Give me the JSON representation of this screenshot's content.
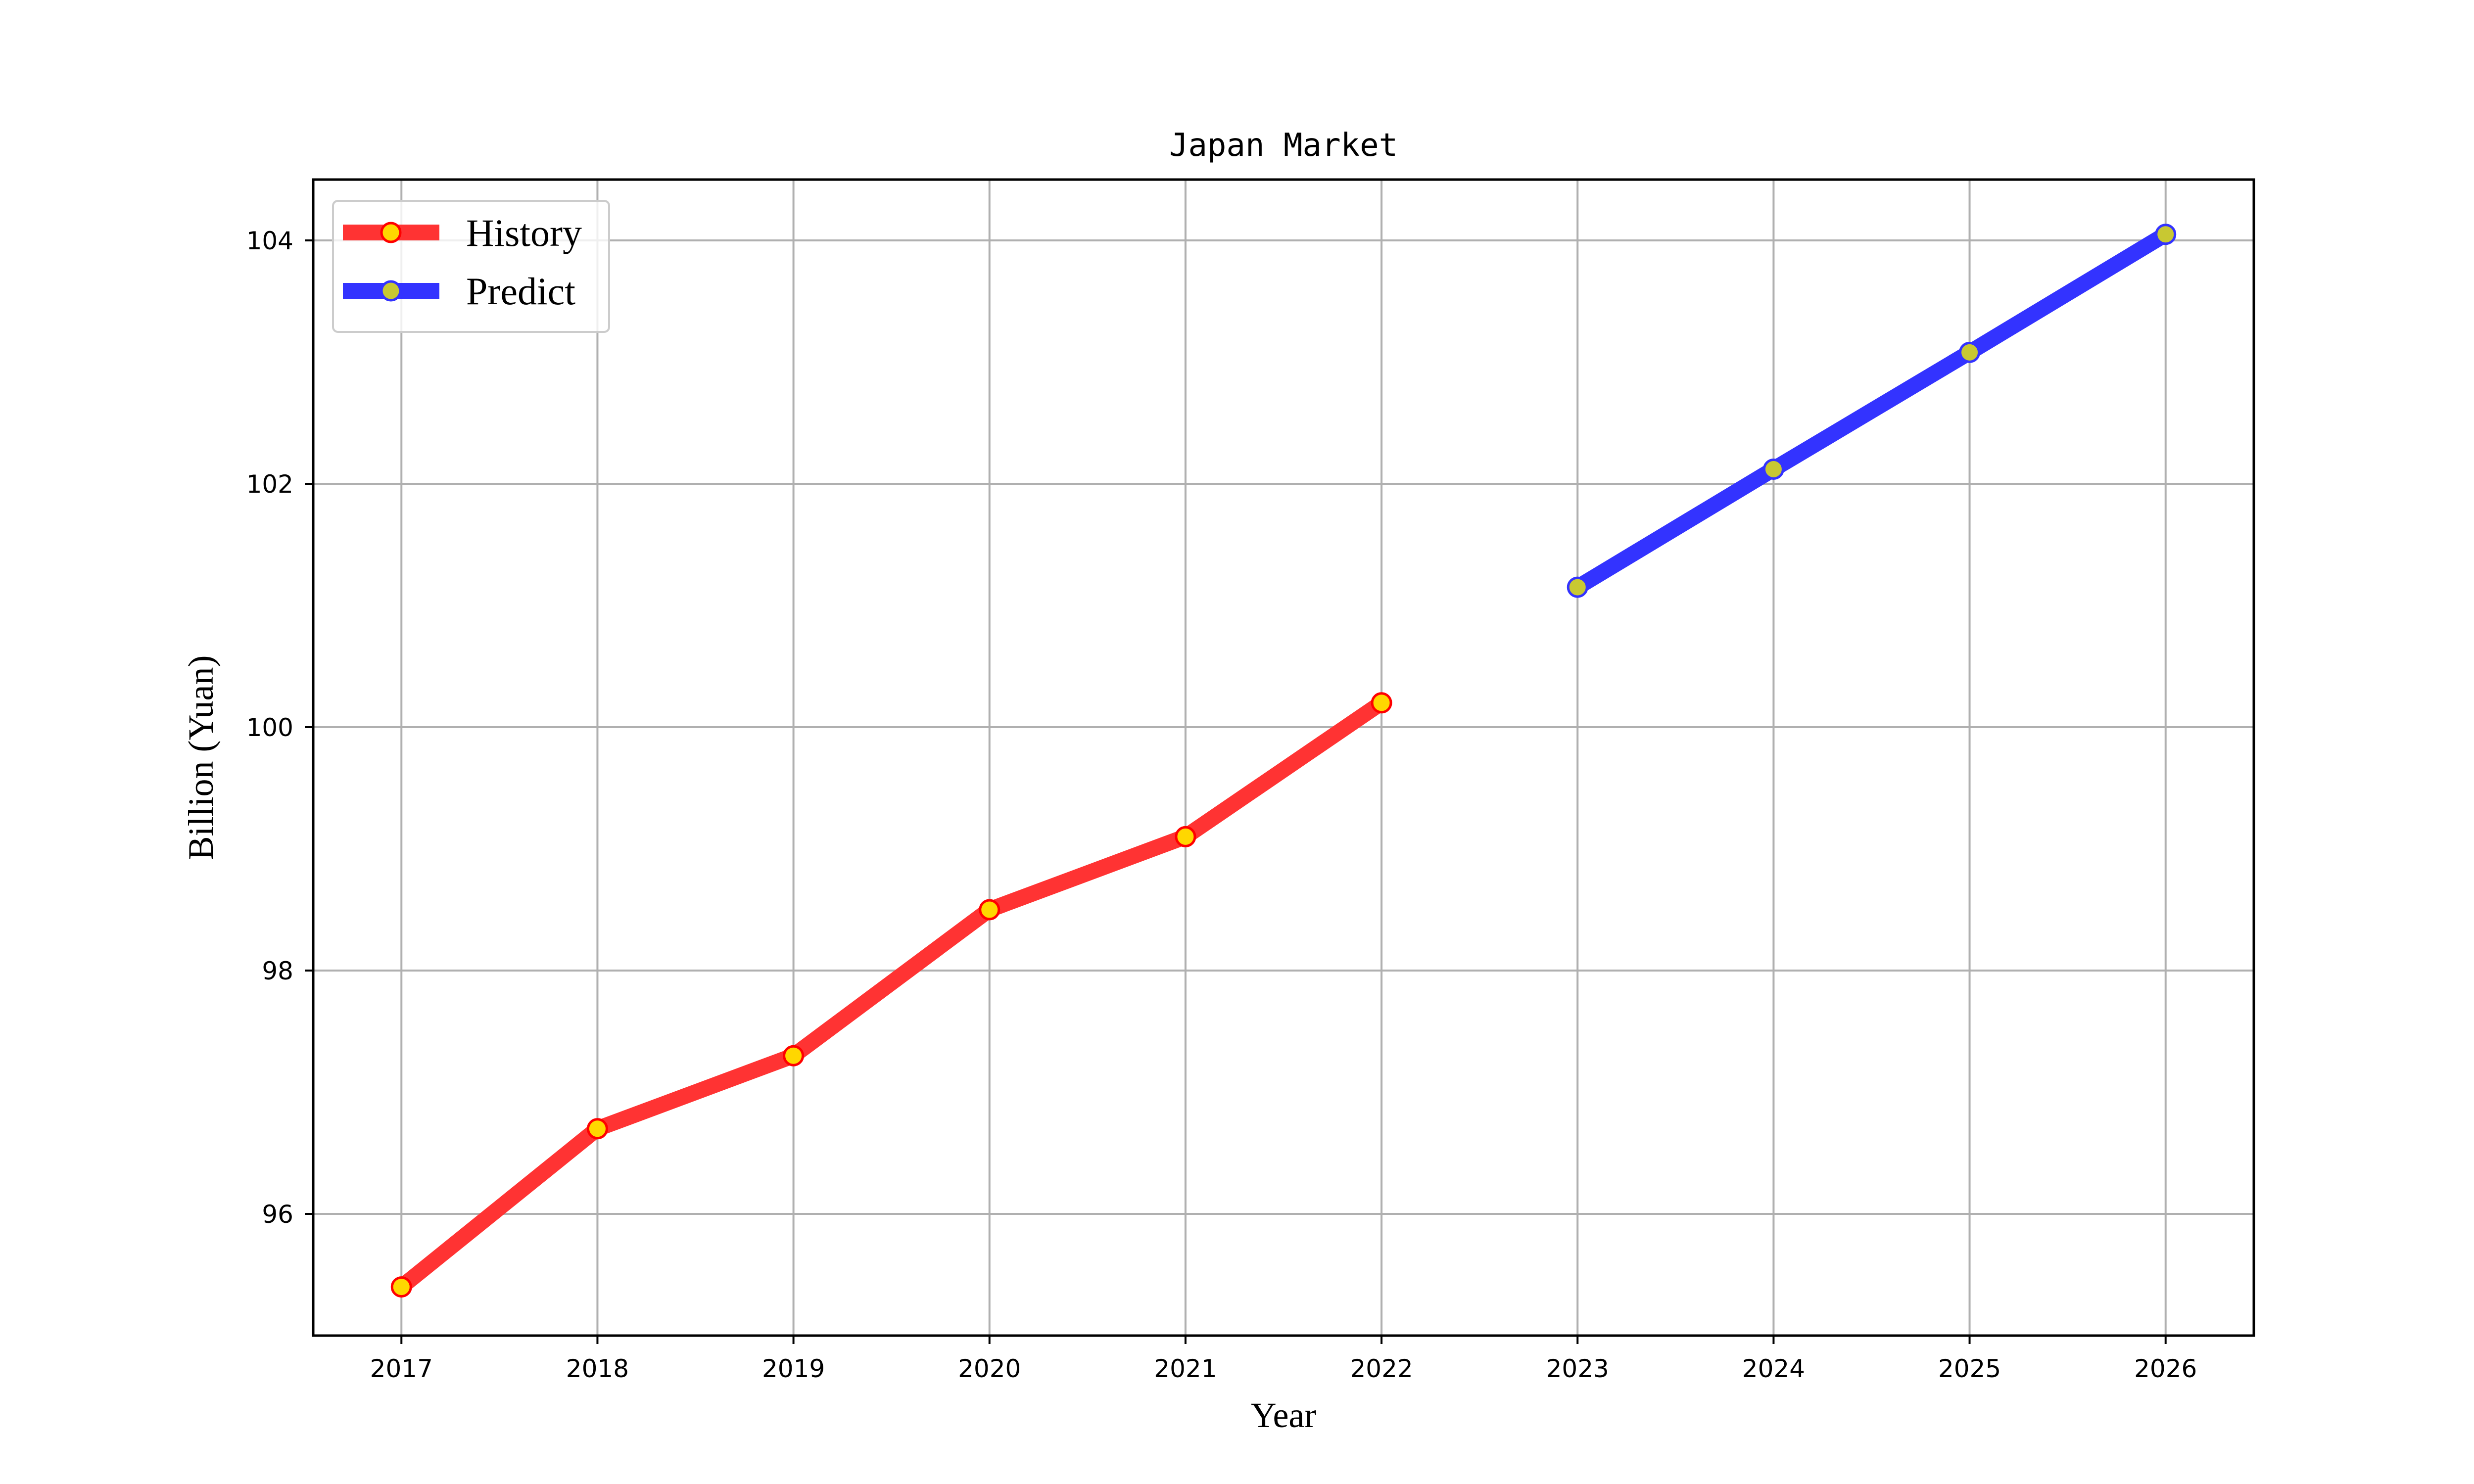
{
  "chart_data": {
    "type": "line",
    "title": "Japan Market",
    "xlabel": "Year",
    "ylabel": "Billion (Yuan)",
    "x": [
      2017,
      2018,
      2019,
      2020,
      2021,
      2022,
      2023,
      2024,
      2025,
      2026
    ],
    "xlim": [
      2016.55,
      2026.45
    ],
    "ylim": [
      95.0,
      104.5
    ],
    "yticks": [
      96,
      98,
      100,
      102,
      104
    ],
    "grid": true,
    "legend_position": "top-left",
    "series": [
      {
        "name": "History",
        "x": [
          2017,
          2018,
          2019,
          2020,
          2021,
          2022
        ],
        "values": [
          95.4,
          96.7,
          97.3,
          98.5,
          99.1,
          100.2
        ],
        "line_color": "#ff3333",
        "marker_fill": "#ffd700",
        "marker_edge": "#ff0000"
      },
      {
        "name": "Predict",
        "x": [
          2023,
          2024,
          2025,
          2026
        ],
        "values": [
          101.15,
          102.12,
          103.08,
          104.05
        ],
        "line_color": "#3333ff",
        "marker_fill": "#c8c832",
        "marker_edge": "#3333ff"
      }
    ]
  }
}
